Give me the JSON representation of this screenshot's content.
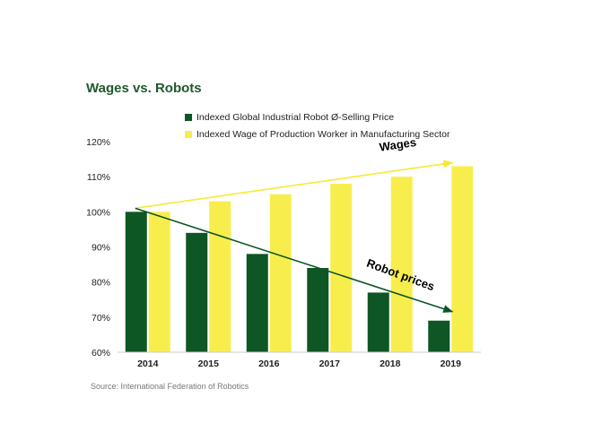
{
  "page": {
    "title": "Wages vs. Robots",
    "source": "Source: International Federation of Robotics"
  },
  "colors": {
    "robot": "#0e5624",
    "wage": "#f7ee4e",
    "title": "#1f5a2c",
    "wages_arrow": "#f5ea35",
    "robot_arrow": "#0e5624"
  },
  "chart_data": {
    "type": "bar",
    "categories": [
      "2014",
      "2015",
      "2016",
      "2017",
      "2018",
      "2019"
    ],
    "series": [
      {
        "name": "Indexed Global Industrial Robot Ø-Selling Price",
        "values": [
          100,
          94,
          88,
          84,
          77,
          69
        ],
        "color": "#0e5624"
      },
      {
        "name": "Indexed Wage of Production Worker in Manufacturing Sector",
        "values": [
          100,
          103,
          105,
          108,
          110,
          113
        ],
        "color": "#f7ee4e"
      }
    ],
    "ylim": [
      60,
      120
    ],
    "yticks": [
      60,
      70,
      80,
      90,
      100,
      110,
      120
    ],
    "ytick_suffix": "%",
    "legend_position": "top",
    "grid": false,
    "annotations": [
      {
        "text": "Wages",
        "color": "#000000"
      },
      {
        "text": "Robot prices",
        "color": "#000000"
      }
    ]
  }
}
